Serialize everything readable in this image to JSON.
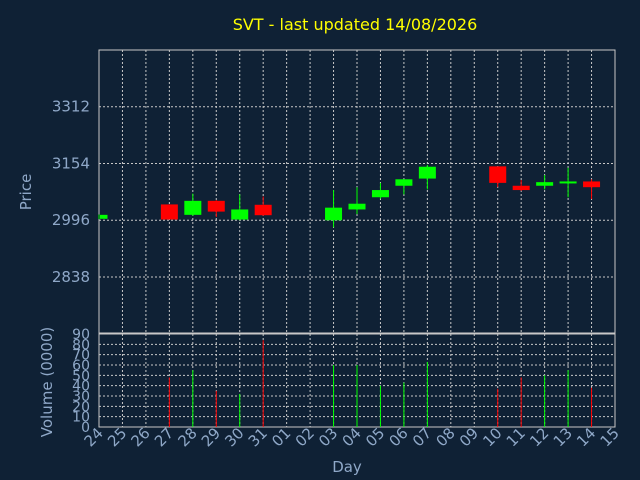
{
  "chart_data": {
    "type": "candlestick",
    "title": "SVT - last updated 14/08/2026",
    "ylabel": "Price",
    "volume_ylabel": "Volume (0000)",
    "xlabel": "Day",
    "price_ylim": [
      2682,
      3470
    ],
    "price_ticks": [
      2838,
      2996,
      3154,
      3312
    ],
    "volume_ylim": [
      0,
      90
    ],
    "volume_ticks": [
      0,
      10,
      20,
      30,
      40,
      50,
      60,
      70,
      80,
      90
    ],
    "days": [
      "24",
      "25",
      "26",
      "27",
      "28",
      "29",
      "30",
      "31",
      "01",
      "02",
      "03",
      "04",
      "05",
      "06",
      "07",
      "08",
      "09",
      "10",
      "11",
      "12",
      "13",
      "14",
      "15"
    ],
    "candles": [
      {
        "day": "24",
        "open": 3000,
        "close": 3011,
        "high": 3012,
        "low": 2999,
        "volume": 0,
        "up": true
      },
      {
        "day": "27",
        "open": 3040,
        "close": 2998,
        "high": 3040,
        "low": 2998,
        "volume": 48,
        "up": false
      },
      {
        "day": "28",
        "open": 3011,
        "close": 3050,
        "high": 3070,
        "low": 3008,
        "volume": 55,
        "up": true
      },
      {
        "day": "29",
        "open": 3050,
        "close": 3020,
        "high": 3052,
        "low": 3005,
        "volume": 35,
        "up": false
      },
      {
        "day": "30",
        "open": 2998,
        "close": 3026,
        "high": 3068,
        "low": 2996,
        "volume": 32,
        "up": true
      },
      {
        "day": "31",
        "open": 3039,
        "close": 3010,
        "high": 3062,
        "low": 3008,
        "volume": 84,
        "up": false
      },
      {
        "day": "03",
        "open": 2996,
        "close": 3031,
        "high": 3080,
        "low": 2976,
        "volume": 60,
        "up": true
      },
      {
        "day": "04",
        "open": 3026,
        "close": 3042,
        "high": 3088,
        "low": 3013,
        "volume": 60,
        "up": true
      },
      {
        "day": "05",
        "open": 3060,
        "close": 3080,
        "high": 3100,
        "low": 3056,
        "volume": 40,
        "up": true
      },
      {
        "day": "06",
        "open": 3092,
        "close": 3110,
        "high": 3110,
        "low": 3068,
        "volume": 43,
        "up": true
      },
      {
        "day": "07",
        "open": 3112,
        "close": 3145,
        "high": 3150,
        "low": 3082,
        "volume": 63,
        "up": true
      },
      {
        "day": "10",
        "open": 3146,
        "close": 3100,
        "high": 3146,
        "low": 3088,
        "volume": 37,
        "up": false
      },
      {
        "day": "11",
        "open": 3092,
        "close": 3080,
        "high": 3108,
        "low": 3078,
        "volume": 48,
        "up": false
      },
      {
        "day": "12",
        "open": 3092,
        "close": 3102,
        "high": 3122,
        "low": 3082,
        "volume": 50,
        "up": true
      },
      {
        "day": "13",
        "open": 3100,
        "close": 3104,
        "high": 3142,
        "low": 3060,
        "volume": 55,
        "up": true
      },
      {
        "day": "14",
        "open": 3104,
        "close": 3088,
        "high": 3110,
        "low": 3055,
        "volume": 38,
        "up": false
      }
    ],
    "colors": {
      "up": "#00ff00",
      "down": "#ff0000",
      "background": "#0f2135",
      "grid": "#c8c8c8",
      "title": "#ffff00",
      "axis_text": "#8fa8c8"
    }
  }
}
